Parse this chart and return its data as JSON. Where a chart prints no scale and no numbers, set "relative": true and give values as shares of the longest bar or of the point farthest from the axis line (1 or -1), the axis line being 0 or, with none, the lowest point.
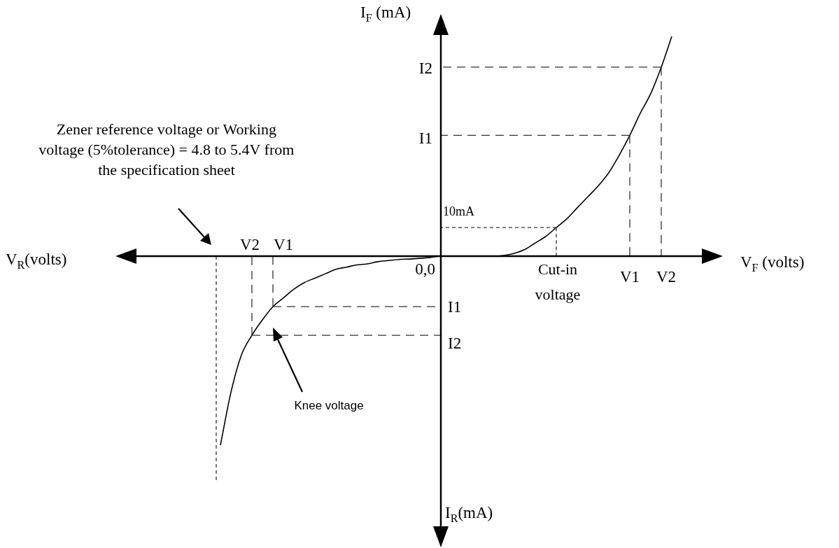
{
  "chart_data": {
    "type": "line",
    "relative": true,
    "xlabel": "V$_{F}$ (volts)",
    "ylabel": "I$_{F}$ (mA)",
    "legend": false,
    "grid": false,
    "marker": "none",
    "line_style": "solid",
    "categories": [
      null,
      null,
      null,
      null,
      null,
      null,
      null,
      null,
      null,
      null,
      null,
      null,
      null,
      null,
      null,
      null,
      null,
      null,
      null,
      null,
      null,
      null,
      null,
      null,
      null,
      null,
      null,
      null,
      null,
      null,
      null,
      null,
      null,
      null,
      null,
      null,
      null,
      null,
      null,
      null,
      null,
      null,
      null,
      null,
      null,
      null,
      null,
      null,
      null,
      null,
      null,
      null,
      null,
      null,
      null,
      null,
      null,
      null,
      null
    ],
    "series": [
      {
        "color": "#000000",
        "values": [
          null,
          null,
          null,
          null,
          null,
          null,
          null,
          null,
          null,
          null,
          -0.86,
          -0.62,
          -0.45,
          -0.36,
          -0.29,
          -0.23,
          -0.19,
          -0.15,
          -0.12,
          -0.1,
          -0.08,
          -0.06,
          -0.05,
          -0.04,
          -0.035,
          -0.025,
          -0.02,
          -0.015,
          -0.013,
          -0.01,
          -0.006,
          0,
          0,
          0,
          0,
          0,
          0,
          0.003,
          0.013,
          0.03,
          0.06,
          0.09,
          0.13,
          0.17,
          0.22,
          0.27,
          0.32,
          0.38,
          0.46,
          0.55,
          0.65,
          0.74,
          0.86,
          1,
          null,
          null,
          null,
          null,
          null
        ]
      }
    ],
    "annotations": [
      "Zener reference voltage or Working voltage (5%tolerance) = 4.8 to 5.4V from the specification sheet",
      "Knee voltage",
      "V2",
      "V1",
      "I1",
      "I2",
      "10mA",
      "Cut-in voltage",
      "V1",
      "V2",
      "I1",
      "I2",
      "0,0",
      "V$_{R}$(volts)",
      "I$_{R}$(mA)"
    ]
  }
}
